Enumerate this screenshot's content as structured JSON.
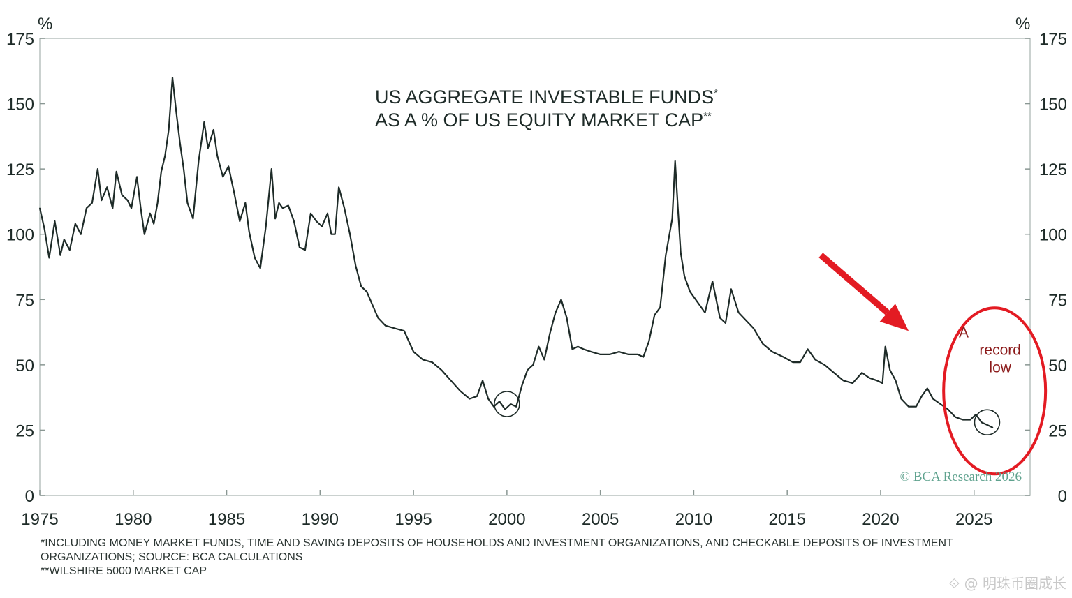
{
  "chart_data": {
    "type": "line",
    "title": "US AGGREGATE INVESTABLE FUNDS",
    "title_mark": "*",
    "subtitle": "AS A % OF US EQUITY MARKET CAP",
    "subtitle_mark": "**",
    "ylabel_left": "%",
    "ylabel_right": "%",
    "xlim": [
      1975,
      2028
    ],
    "ylim": [
      0,
      175
    ],
    "x_ticks": [
      1975,
      1980,
      1985,
      1990,
      1995,
      2000,
      2005,
      2010,
      2015,
      2020,
      2025
    ],
    "y_ticks": [
      0,
      25,
      50,
      75,
      100,
      125,
      150,
      175
    ],
    "grid": false,
    "series": [
      {
        "name": "Aggregate investable funds % of equity market cap",
        "x": [
          1975.0,
          1975.25,
          1975.5,
          1975.8,
          1976.1,
          1976.3,
          1976.6,
          1976.9,
          1977.2,
          1977.5,
          1977.8,
          1978.1,
          1978.3,
          1978.6,
          1978.9,
          1979.1,
          1979.4,
          1979.7,
          1979.9,
          1980.2,
          1980.4,
          1980.6,
          1980.9,
          1981.1,
          1981.3,
          1981.5,
          1981.7,
          1981.9,
          1982.1,
          1982.3,
          1982.5,
          1982.7,
          1982.9,
          1983.2,
          1983.5,
          1983.8,
          1984.0,
          1984.3,
          1984.5,
          1984.8,
          1985.1,
          1985.4,
          1985.7,
          1986.0,
          1986.2,
          1986.5,
          1986.8,
          1987.1,
          1987.4,
          1987.6,
          1987.8,
          1988.0,
          1988.3,
          1988.6,
          1988.9,
          1989.2,
          1989.5,
          1989.8,
          1990.1,
          1990.4,
          1990.6,
          1990.8,
          1991.0,
          1991.3,
          1991.6,
          1991.9,
          1992.2,
          1992.5,
          1992.8,
          1993.1,
          1993.5,
          1994.0,
          1994.5,
          1995.0,
          1995.5,
          1996.0,
          1996.5,
          1997.0,
          1997.5,
          1998.0,
          1998.4,
          1998.7,
          1999.0,
          1999.3,
          1999.6,
          1999.9,
          2000.2,
          2000.5,
          2000.8,
          2001.1,
          2001.4,
          2001.7,
          2002.0,
          2002.3,
          2002.6,
          2002.9,
          2003.2,
          2003.5,
          2003.8,
          2004.1,
          2004.5,
          2005.0,
          2005.5,
          2006.0,
          2006.5,
          2007.0,
          2007.3,
          2007.6,
          2007.9,
          2008.2,
          2008.5,
          2008.7,
          2008.85,
          2009.0,
          2009.15,
          2009.3,
          2009.5,
          2009.8,
          2010.2,
          2010.6,
          2011.0,
          2011.4,
          2011.7,
          2012.0,
          2012.4,
          2012.8,
          2013.2,
          2013.7,
          2014.2,
          2014.8,
          2015.3,
          2015.7,
          2016.1,
          2016.5,
          2017.0,
          2017.5,
          2018.0,
          2018.5,
          2019.0,
          2019.4,
          2019.8,
          2020.1,
          2020.25,
          2020.5,
          2020.8,
          2021.1,
          2021.5,
          2021.9,
          2022.2,
          2022.5,
          2022.8,
          2023.2,
          2023.6,
          2024.0,
          2024.4,
          2024.8,
          2025.1,
          2025.4,
          2025.7,
          2026.0
        ],
        "y": [
          110,
          102,
          91,
          105,
          92,
          98,
          94,
          104,
          100,
          110,
          112,
          125,
          113,
          118,
          110,
          124,
          115,
          113,
          110,
          122,
          110,
          100,
          108,
          104,
          112,
          124,
          130,
          140,
          160,
          147,
          135,
          125,
          112,
          106,
          128,
          143,
          133,
          140,
          130,
          122,
          126,
          116,
          105,
          112,
          101,
          91,
          87,
          103,
          125,
          106,
          112,
          110,
          111,
          105,
          95,
          94,
          108,
          105,
          103,
          108,
          100,
          100,
          118,
          110,
          100,
          88,
          80,
          78,
          73,
          68,
          65,
          64,
          63,
          55,
          52,
          51,
          48,
          44,
          40,
          37,
          38,
          44,
          37,
          34,
          36,
          33,
          35,
          34,
          42,
          48,
          50,
          57,
          52,
          62,
          70,
          75,
          68,
          56,
          57,
          56,
          55,
          54,
          54,
          55,
          54,
          54,
          53,
          59,
          69,
          72,
          92,
          100,
          106,
          128,
          110,
          93,
          84,
          78,
          74,
          70,
          82,
          68,
          66,
          79,
          70,
          67,
          64,
          58,
          55,
          53,
          51,
          51,
          56,
          52,
          50,
          47,
          44,
          43,
          47,
          45,
          44,
          43,
          57,
          48,
          44,
          37,
          34,
          34,
          38,
          41,
          37,
          35,
          33,
          30,
          29,
          29,
          31,
          28,
          27,
          26
        ]
      }
    ],
    "annotations": [
      {
        "type": "circle",
        "x": 2000,
        "y": 35
      },
      {
        "type": "circle",
        "x": 2025.7,
        "y": 28
      },
      {
        "type": "ellipse",
        "x": 2026.1,
        "y": 40,
        "color": "#e31b23"
      },
      {
        "type": "arrow",
        "from": [
          2016.8,
          92
        ],
        "to": [
          2021.5,
          63
        ],
        "color": "#e31b23"
      },
      {
        "type": "label",
        "lines": [
          "A",
          "record",
          "low"
        ],
        "x": 2026.4,
        "y": 52,
        "color": "#8b1a1a"
      }
    ]
  },
  "credit": "© BCA Research 2026",
  "colors": {
    "line": "#1e2b28",
    "accent": "#e31b23",
    "annotation_text": "#8b1a1a",
    "credit": "#5fa28e"
  },
  "footnotes": {
    "line1": "*INCLUDING MONEY MARKET FUNDS, TIME AND SAVING DEPOSITS OF HOUSEHOLDS AND INVESTMENT ORGANIZATIONS, AND CHECKABLE DEPOSITS OF INVESTMENT",
    "line2": "ORGANIZATIONS; SOURCE: BCA CALCULATIONS",
    "line3": "**WILSHIRE 5000 MARKET CAP"
  },
  "watermark": "⟐ @ 明珠币圈成长"
}
